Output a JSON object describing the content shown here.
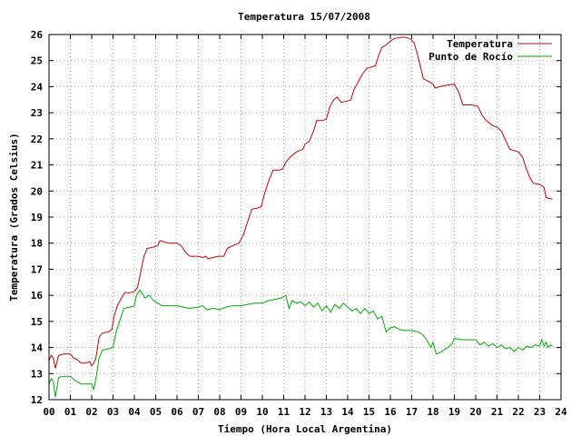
{
  "chart_data": {
    "type": "line",
    "title": "Temperatura 15/07/2008",
    "xlabel": "Tiempo (Hora Local Argentina)",
    "ylabel": "Temperatura (Grados Celsius)",
    "xlim": [
      0,
      24
    ],
    "ylim": [
      12,
      26
    ],
    "xticks": [
      "00",
      "01",
      "02",
      "03",
      "04",
      "05",
      "06",
      "07",
      "08",
      "09",
      "10",
      "11",
      "12",
      "13",
      "14",
      "15",
      "16",
      "17",
      "18",
      "19",
      "20",
      "21",
      "22",
      "23",
      "24"
    ],
    "yticks": [
      12,
      13,
      14,
      15,
      16,
      17,
      18,
      19,
      20,
      21,
      22,
      23,
      24,
      25,
      26
    ],
    "grid": true,
    "legend_position": "top-right",
    "series": [
      {
        "name": "Temperatura",
        "color": "#cc0000",
        "points": [
          [
            0.0,
            13.5
          ],
          [
            0.1,
            13.7
          ],
          [
            0.2,
            13.6
          ],
          [
            0.3,
            13.2
          ],
          [
            0.45,
            13.7
          ],
          [
            0.7,
            13.75
          ],
          [
            1.0,
            13.75
          ],
          [
            1.15,
            13.6
          ],
          [
            1.3,
            13.55
          ],
          [
            1.5,
            13.4
          ],
          [
            1.7,
            13.4
          ],
          [
            1.9,
            13.45
          ],
          [
            2.0,
            13.3
          ],
          [
            2.1,
            13.4
          ],
          [
            2.2,
            13.6
          ],
          [
            2.35,
            14.4
          ],
          [
            2.5,
            14.55
          ],
          [
            2.8,
            14.6
          ],
          [
            2.95,
            14.7
          ],
          [
            3.05,
            15.2
          ],
          [
            3.2,
            15.6
          ],
          [
            3.4,
            15.9
          ],
          [
            3.55,
            16.1
          ],
          [
            3.8,
            16.1
          ],
          [
            4.0,
            16.15
          ],
          [
            4.15,
            16.3
          ],
          [
            4.3,
            16.9
          ],
          [
            4.45,
            17.5
          ],
          [
            4.6,
            17.8
          ],
          [
            4.9,
            17.85
          ],
          [
            5.1,
            17.9
          ],
          [
            5.2,
            18.1
          ],
          [
            5.4,
            18.05
          ],
          [
            5.6,
            18.0
          ],
          [
            5.9,
            18.0
          ],
          [
            6.0,
            18.0
          ],
          [
            6.2,
            17.9
          ],
          [
            6.4,
            17.65
          ],
          [
            6.6,
            17.5
          ],
          [
            7.0,
            17.5
          ],
          [
            7.2,
            17.45
          ],
          [
            7.35,
            17.5
          ],
          [
            7.45,
            17.4
          ],
          [
            7.7,
            17.45
          ],
          [
            7.9,
            17.5
          ],
          [
            8.2,
            17.5
          ],
          [
            8.35,
            17.8
          ],
          [
            8.6,
            17.9
          ],
          [
            8.9,
            18.0
          ],
          [
            9.1,
            18.3
          ],
          [
            9.3,
            18.8
          ],
          [
            9.5,
            19.3
          ],
          [
            9.8,
            19.35
          ],
          [
            9.95,
            19.4
          ],
          [
            10.1,
            19.9
          ],
          [
            10.3,
            20.4
          ],
          [
            10.5,
            20.8
          ],
          [
            10.8,
            20.8
          ],
          [
            10.95,
            20.85
          ],
          [
            11.1,
            21.1
          ],
          [
            11.3,
            21.3
          ],
          [
            11.6,
            21.5
          ],
          [
            11.9,
            21.6
          ],
          [
            12.0,
            21.8
          ],
          [
            12.2,
            21.9
          ],
          [
            12.4,
            22.3
          ],
          [
            12.55,
            22.7
          ],
          [
            12.8,
            22.7
          ],
          [
            13.0,
            22.75
          ],
          [
            13.15,
            23.2
          ],
          [
            13.35,
            23.5
          ],
          [
            13.5,
            23.6
          ],
          [
            13.7,
            23.4
          ],
          [
            14.0,
            23.45
          ],
          [
            14.15,
            23.5
          ],
          [
            14.3,
            23.9
          ],
          [
            14.5,
            24.2
          ],
          [
            14.7,
            24.5
          ],
          [
            14.9,
            24.7
          ],
          [
            15.1,
            24.75
          ],
          [
            15.3,
            24.8
          ],
          [
            15.45,
            25.2
          ],
          [
            15.6,
            25.5
          ],
          [
            15.8,
            25.6
          ],
          [
            16.0,
            25.75
          ],
          [
            16.2,
            25.85
          ],
          [
            16.6,
            25.9
          ],
          [
            16.9,
            25.85
          ],
          [
            17.1,
            25.7
          ],
          [
            17.25,
            25.3
          ],
          [
            17.4,
            24.8
          ],
          [
            17.55,
            24.3
          ],
          [
            17.8,
            24.2
          ],
          [
            18.0,
            24.1
          ],
          [
            18.1,
            23.95
          ],
          [
            18.3,
            24.0
          ],
          [
            18.6,
            24.05
          ],
          [
            19.0,
            24.1
          ],
          [
            19.2,
            23.8
          ],
          [
            19.4,
            23.3
          ],
          [
            19.8,
            23.3
          ],
          [
            20.1,
            23.25
          ],
          [
            20.3,
            22.9
          ],
          [
            20.5,
            22.7
          ],
          [
            20.8,
            22.5
          ],
          [
            21.0,
            22.45
          ],
          [
            21.2,
            22.3
          ],
          [
            21.4,
            21.95
          ],
          [
            21.6,
            21.6
          ],
          [
            22.0,
            21.5
          ],
          [
            22.2,
            21.3
          ],
          [
            22.35,
            20.9
          ],
          [
            22.55,
            20.5
          ],
          [
            22.7,
            20.3
          ],
          [
            23.0,
            20.25
          ],
          [
            23.2,
            20.15
          ],
          [
            23.3,
            19.75
          ],
          [
            23.5,
            19.7
          ],
          [
            23.6,
            19.7
          ]
        ]
      },
      {
        "name": "Punto de Rocío",
        "color": "#00aa00",
        "points": [
          [
            0.0,
            12.6
          ],
          [
            0.1,
            12.8
          ],
          [
            0.2,
            12.7
          ],
          [
            0.3,
            12.1
          ],
          [
            0.45,
            12.85
          ],
          [
            0.7,
            12.9
          ],
          [
            1.0,
            12.9
          ],
          [
            1.2,
            12.75
          ],
          [
            1.5,
            12.6
          ],
          [
            1.8,
            12.6
          ],
          [
            2.0,
            12.6
          ],
          [
            2.1,
            12.4
          ],
          [
            2.2,
            12.8
          ],
          [
            2.35,
            13.6
          ],
          [
            2.5,
            13.9
          ],
          [
            2.8,
            13.95
          ],
          [
            3.0,
            14.0
          ],
          [
            3.15,
            14.6
          ],
          [
            3.35,
            15.1
          ],
          [
            3.5,
            15.5
          ],
          [
            3.8,
            15.55
          ],
          [
            4.0,
            15.6
          ],
          [
            4.1,
            16.0
          ],
          [
            4.25,
            16.2
          ],
          [
            4.35,
            16.1
          ],
          [
            4.5,
            15.9
          ],
          [
            4.7,
            16.0
          ],
          [
            4.9,
            15.8
          ],
          [
            5.1,
            15.7
          ],
          [
            5.3,
            15.6
          ],
          [
            5.6,
            15.6
          ],
          [
            6.0,
            15.6
          ],
          [
            6.3,
            15.55
          ],
          [
            6.6,
            15.5
          ],
          [
            7.0,
            15.55
          ],
          [
            7.2,
            15.6
          ],
          [
            7.4,
            15.45
          ],
          [
            7.7,
            15.5
          ],
          [
            8.0,
            15.45
          ],
          [
            8.3,
            15.55
          ],
          [
            8.6,
            15.6
          ],
          [
            9.0,
            15.6
          ],
          [
            9.3,
            15.65
          ],
          [
            9.6,
            15.7
          ],
          [
            10.0,
            15.7
          ],
          [
            10.3,
            15.8
          ],
          [
            10.6,
            15.85
          ],
          [
            10.9,
            15.9
          ],
          [
            11.1,
            16.0
          ],
          [
            11.25,
            15.5
          ],
          [
            11.4,
            15.8
          ],
          [
            11.6,
            15.7
          ],
          [
            11.8,
            15.75
          ],
          [
            12.0,
            15.6
          ],
          [
            12.2,
            15.75
          ],
          [
            12.4,
            15.55
          ],
          [
            12.6,
            15.7
          ],
          [
            12.8,
            15.4
          ],
          [
            13.0,
            15.6
          ],
          [
            13.2,
            15.35
          ],
          [
            13.4,
            15.65
          ],
          [
            13.6,
            15.5
          ],
          [
            13.8,
            15.7
          ],
          [
            14.0,
            15.55
          ],
          [
            14.2,
            15.4
          ],
          [
            14.4,
            15.5
          ],
          [
            14.6,
            15.3
          ],
          [
            14.8,
            15.5
          ],
          [
            15.0,
            15.3
          ],
          [
            15.2,
            15.4
          ],
          [
            15.4,
            15.1
          ],
          [
            15.6,
            15.2
          ],
          [
            15.8,
            14.6
          ],
          [
            16.0,
            14.75
          ],
          [
            16.2,
            14.8
          ],
          [
            16.4,
            14.7
          ],
          [
            16.7,
            14.65
          ],
          [
            17.0,
            14.65
          ],
          [
            17.3,
            14.6
          ],
          [
            17.5,
            14.5
          ],
          [
            17.7,
            14.3
          ],
          [
            17.9,
            14.0
          ],
          [
            18.0,
            14.2
          ],
          [
            18.15,
            13.75
          ],
          [
            18.3,
            13.8
          ],
          [
            18.5,
            13.9
          ],
          [
            18.7,
            14.0
          ],
          [
            18.9,
            14.15
          ],
          [
            19.0,
            14.35
          ],
          [
            19.3,
            14.3
          ],
          [
            19.6,
            14.3
          ],
          [
            20.0,
            14.3
          ],
          [
            20.2,
            14.1
          ],
          [
            20.4,
            14.2
          ],
          [
            20.6,
            14.05
          ],
          [
            20.8,
            14.15
          ],
          [
            21.0,
            14.0
          ],
          [
            21.2,
            14.1
          ],
          [
            21.4,
            13.95
          ],
          [
            21.6,
            14.0
          ],
          [
            21.8,
            13.85
          ],
          [
            22.0,
            14.0
          ],
          [
            22.2,
            13.9
          ],
          [
            22.4,
            14.05
          ],
          [
            22.6,
            14.0
          ],
          [
            22.8,
            14.1
          ],
          [
            23.0,
            14.05
          ],
          [
            23.1,
            14.3
          ],
          [
            23.2,
            14.05
          ],
          [
            23.3,
            14.2
          ],
          [
            23.4,
            14.0
          ],
          [
            23.5,
            14.1
          ],
          [
            23.6,
            14.05
          ]
        ]
      }
    ]
  }
}
